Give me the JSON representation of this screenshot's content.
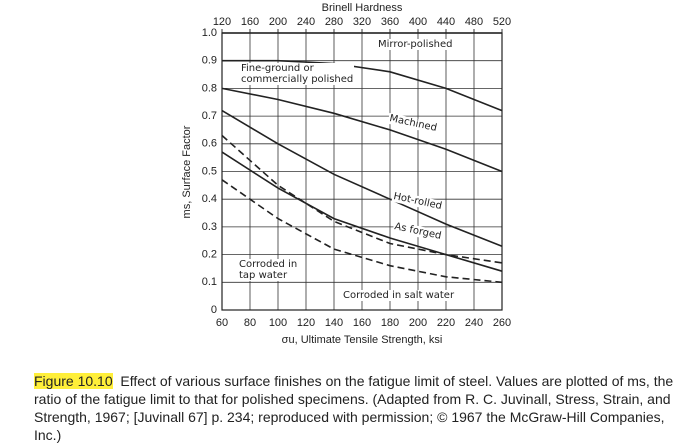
{
  "chart_data": {
    "type": "line",
    "x2label": "Brinell Hardness",
    "xlabel": "σu, Ultimate Tensile Strength, ksi",
    "ylabel": "ms, Surface Factor",
    "x": [
      60,
      100,
      140,
      180,
      220,
      260
    ],
    "xlim": [
      60,
      260
    ],
    "xticks": [
      60,
      80,
      100,
      120,
      140,
      160,
      180,
      200,
      220,
      240,
      260
    ],
    "x2lim": [
      120,
      520
    ],
    "x2ticks": [
      120,
      160,
      200,
      240,
      280,
      320,
      360,
      400,
      440,
      480,
      520
    ],
    "ylim": [
      0,
      1
    ],
    "yticks": [
      0,
      0.1,
      0.2,
      0.3,
      0.4,
      0.5,
      0.6,
      0.7,
      0.8,
      0.9,
      {
        "value": 1,
        "label": "1.0"
      }
    ],
    "grid": true,
    "series": [
      {
        "name": "Mirror-polished",
        "color": "#222",
        "dashed": false,
        "values": [
          1.0,
          1.0,
          1.0,
          1.0,
          1.0,
          1.0
        ]
      },
      {
        "name": "Fine-ground or\ncommercially polished",
        "color": "#222",
        "dashed": false,
        "values": [
          0.9,
          0.9,
          0.89,
          0.86,
          0.8,
          0.72
        ]
      },
      {
        "name": "Machined",
        "color": "#222",
        "dashed": false,
        "values": [
          0.8,
          0.76,
          0.71,
          0.65,
          0.58,
          0.5
        ]
      },
      {
        "name": "Hot-rolled",
        "color": "#222",
        "dashed": false,
        "values": [
          0.72,
          0.6,
          0.49,
          0.4,
          0.31,
          0.23
        ]
      },
      {
        "name": "As forged",
        "color": "#222",
        "dashed": false,
        "values": [
          0.57,
          0.44,
          0.33,
          0.26,
          0.2,
          0.14
        ]
      },
      {
        "name": "Corroded in\ntap water",
        "color": "#222",
        "dashed": true,
        "values": [
          0.63,
          0.45,
          0.32,
          0.24,
          0.2,
          0.17
        ]
      },
      {
        "name": "Corroded in salt water",
        "color": "#222",
        "dashed": true,
        "values": [
          0.47,
          0.33,
          0.22,
          0.16,
          0.12,
          0.1
        ]
      }
    ]
  },
  "caption": {
    "label": "Figure 10.10",
    "text": "Effect of various surface finishes on the fatigue limit of steel. Values are plotted of ms, the ratio of the fatigue limit to that for polished specimens. (Adapted from R. C. Juvinall, Stress, Strain, and Strength, 1967; [Juvinall 67] p. 234; reproduced with permission; © 1967 the McGraw-Hill Companies, Inc.)"
  }
}
